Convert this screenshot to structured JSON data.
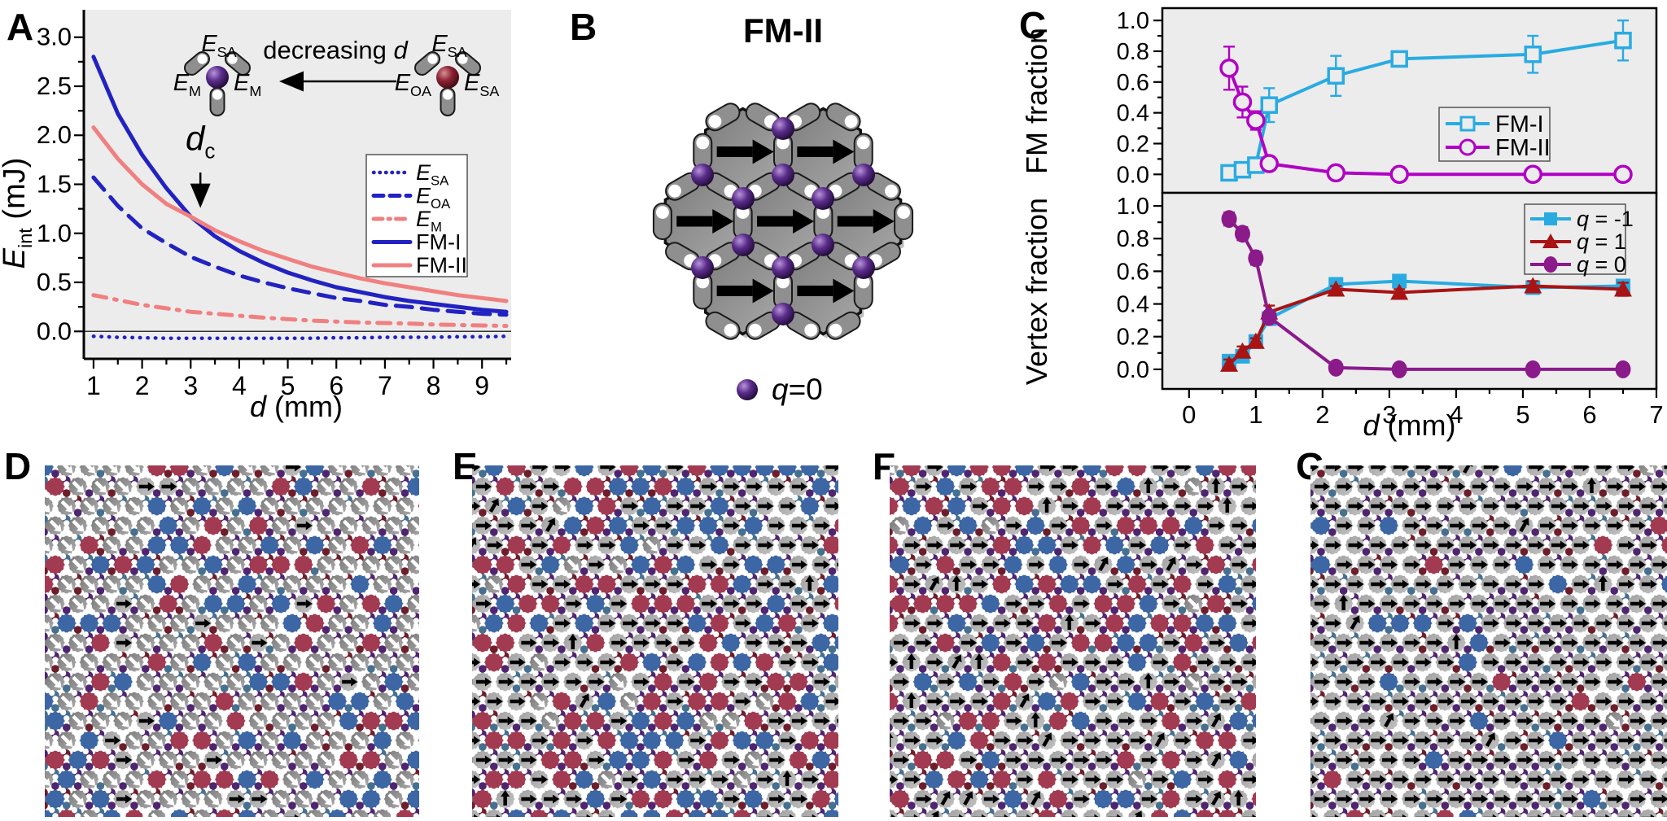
{
  "panels": {
    "A": {
      "label": "A",
      "xlabel_parts": [
        {
          "t": "d",
          "i": 1
        },
        {
          "t": " (mm)"
        }
      ],
      "ylabel_parts": [
        {
          "t": "E",
          "i": 1
        },
        {
          "t": "int",
          "sub": 1
        },
        {
          "t": " (mJ)"
        }
      ],
      "annotation_parts": [
        {
          "t": "d",
          "i": 1
        },
        {
          "t": "c",
          "sub": 1
        }
      ],
      "inset": {
        "arrow_label_parts": [
          {
            "t": "decreasing "
          },
          {
            "t": "d",
            "i": 1
          }
        ],
        "left_diagram": {
          "top": [
            {
              "t": "E",
              "i": 1
            },
            {
              "t": "SA",
              "sub": 1
            }
          ],
          "left": [
            {
              "t": "E",
              "i": 1
            },
            {
              "t": "M",
              "sub": 1
            }
          ],
          "right": [
            {
              "t": "E",
              "i": 1
            },
            {
              "t": "M",
              "sub": 1
            }
          ],
          "sphere": "#5B2D8C"
        },
        "right_diagram": {
          "top": [
            {
              "t": "E",
              "i": 1
            },
            {
              "t": "SA",
              "sub": 1
            }
          ],
          "left": [
            {
              "t": "E",
              "i": 1
            },
            {
              "t": "OA",
              "sub": 1
            }
          ],
          "right": [
            {
              "t": "E",
              "i": 1
            },
            {
              "t": "SA",
              "sub": 1
            }
          ],
          "sphere": "#8E2433"
        }
      }
    },
    "B": {
      "label": "B",
      "title": "FM-II",
      "legend_parts": [
        {
          "t": "q",
          "i": 1
        },
        {
          "t": "=0"
        }
      ],
      "hex_arrow_direction": "right",
      "num_hexagons": 7
    },
    "C": {
      "label": "C"
    },
    "D": {
      "label": "D"
    },
    "E": {
      "label": "E"
    },
    "F": {
      "label": "F"
    },
    "G": {
      "label": "G"
    }
  },
  "chart_data": [
    {
      "id": "panelA",
      "type": "line",
      "xlabel": "d (mm)",
      "ylabel": "E_int (mJ)",
      "xlim": [
        0.8,
        9.6
      ],
      "ylim": [
        -0.28,
        3.28
      ],
      "xticks": [
        1,
        2,
        3,
        4,
        5,
        6,
        7,
        8,
        9
      ],
      "yticks": [
        0.0,
        0.5,
        1.0,
        1.5,
        2.0,
        2.5,
        3.0
      ],
      "ytick_labels": [
        "0.0",
        "0.5",
        "1.0",
        "1.5",
        "2.0",
        "2.5",
        "3.0"
      ],
      "grid": false,
      "background": "#ECECEC",
      "x": [
        1,
        1.5,
        2,
        2.5,
        3,
        3.5,
        4,
        4.5,
        5,
        5.5,
        6,
        6.5,
        7,
        7.5,
        8,
        8.5,
        9,
        9.5
      ],
      "series": [
        {
          "name": "E_SA",
          "label_parts": [
            {
              "t": "E",
              "i": 1
            },
            {
              "t": "SA",
              "sub": 1
            }
          ],
          "style": "dotted",
          "color": "#2222C2",
          "values": [
            -0.05,
            -0.06,
            -0.065,
            -0.07,
            -0.07,
            -0.07,
            -0.07,
            -0.07,
            -0.07,
            -0.07,
            -0.065,
            -0.065,
            -0.06,
            -0.06,
            -0.06,
            -0.055,
            -0.055,
            -0.05
          ]
        },
        {
          "name": "E_OA",
          "label_parts": [
            {
              "t": "E",
              "i": 1
            },
            {
              "t": "OA",
              "sub": 1
            }
          ],
          "style": "dashed",
          "color": "#2222C2",
          "values": [
            1.57,
            1.28,
            1.05,
            0.9,
            0.76,
            0.66,
            0.57,
            0.5,
            0.44,
            0.39,
            0.34,
            0.31,
            0.27,
            0.25,
            0.22,
            0.2,
            0.18,
            0.17
          ]
        },
        {
          "name": "E_M",
          "label_parts": [
            {
              "t": "E",
              "i": 1
            },
            {
              "t": "M",
              "sub": 1
            }
          ],
          "style": "dashdot",
          "color": "#F08080",
          "values": [
            0.37,
            0.32,
            0.27,
            0.235,
            0.2,
            0.18,
            0.16,
            0.14,
            0.125,
            0.11,
            0.1,
            0.09,
            0.085,
            0.08,
            0.07,
            0.065,
            0.06,
            0.055
          ]
        },
        {
          "name": "FM-I",
          "label_parts": [
            {
              "t": "FM-I"
            }
          ],
          "style": "solid",
          "color": "#2222C2",
          "values": [
            2.8,
            2.22,
            1.8,
            1.46,
            1.17,
            0.97,
            0.82,
            0.7,
            0.6,
            0.52,
            0.45,
            0.4,
            0.35,
            0.31,
            0.28,
            0.25,
            0.22,
            0.2
          ]
        },
        {
          "name": "FM-II",
          "label_parts": [
            {
              "t": "FM-II"
            }
          ],
          "style": "solid",
          "color": "#F08080",
          "values": [
            2.08,
            1.76,
            1.5,
            1.3,
            1.17,
            1.03,
            0.92,
            0.82,
            0.74,
            0.66,
            0.6,
            0.54,
            0.49,
            0.45,
            0.41,
            0.37,
            0.34,
            0.31
          ]
        }
      ],
      "annotation": {
        "x": 3.2,
        "y_text": 1.85,
        "arrow_y_from": 1.62,
        "arrow_y_to": 1.3,
        "legend_position": "right-middle"
      }
    },
    {
      "id": "panelC_top",
      "type": "scatter-line",
      "ylabel": "FM fraction",
      "xlim": [
        -0.4,
        7.0
      ],
      "ylim": [
        -0.12,
        1.08
      ],
      "yticks": [
        0.0,
        0.2,
        0.4,
        0.6,
        0.8,
        1.0
      ],
      "ytick_labels": [
        "0.0",
        "0.2",
        "0.4",
        "0.6",
        "0.8",
        "1.0"
      ],
      "background": "#ECECEC",
      "x": [
        0.6,
        0.8,
        1.0,
        1.2,
        2.2,
        3.15,
        5.15,
        6.5
      ],
      "series": [
        {
          "name": "FM-I",
          "label_parts": [
            {
              "t": "FM-I"
            }
          ],
          "marker": "square-open",
          "color": "#29ABE2",
          "values": [
            0.01,
            0.03,
            0.06,
            0.45,
            0.64,
            0.75,
            0.78,
            0.87
          ],
          "errors": [
            0.02,
            0.02,
            0.03,
            0.11,
            0.13,
            0.03,
            0.12,
            0.13
          ]
        },
        {
          "name": "FM-II",
          "label_parts": [
            {
              "t": "FM-II"
            }
          ],
          "marker": "circle-open",
          "color": "#B100C4",
          "values": [
            0.69,
            0.47,
            0.35,
            0.07,
            0.01,
            0.0,
            0.0,
            0.0
          ],
          "errors": [
            0.14,
            0.1,
            0.06,
            0.03,
            0.01,
            0.01,
            0.01,
            0.01
          ]
        }
      ],
      "legend_position": "right-middle"
    },
    {
      "id": "panelC_bottom",
      "type": "scatter-line",
      "ylabel": "Vertex fraction",
      "xlabel": "d (mm)",
      "xlim": [
        -0.4,
        7.0
      ],
      "ylim": [
        -0.12,
        1.08
      ],
      "xticks": [
        0,
        1,
        2,
        3,
        4,
        5,
        6,
        7
      ],
      "yticks": [
        0.0,
        0.2,
        0.4,
        0.6,
        0.8,
        1.0
      ],
      "ytick_labels": [
        "0.0",
        "0.2",
        "0.4",
        "0.6",
        "0.8",
        "1.0"
      ],
      "background": "#ECECEC",
      "x": [
        0.6,
        0.8,
        1.0,
        1.2,
        2.2,
        3.15,
        5.15,
        6.5
      ],
      "series": [
        {
          "name": "q = -1",
          "label_parts": [
            {
              "t": "q",
              "i": 1
            },
            {
              "t": " = -1"
            }
          ],
          "marker": "square",
          "color": "#29ABE2",
          "values": [
            0.05,
            0.08,
            0.17,
            0.31,
            0.52,
            0.54,
            0.5,
            0.51
          ],
          "errors": [
            0.02,
            0.02,
            0.02,
            0.03,
            0.02,
            0.02,
            0.03,
            0.03
          ]
        },
        {
          "name": "q = 1",
          "label_parts": [
            {
              "t": "q",
              "i": 1
            },
            {
              "t": " = 1"
            }
          ],
          "marker": "triangle",
          "color": "#A81414",
          "values": [
            0.03,
            0.11,
            0.17,
            0.35,
            0.49,
            0.47,
            0.51,
            0.49
          ],
          "errors": [
            0.03,
            0.03,
            0.02,
            0.04,
            0.02,
            0.02,
            0.03,
            0.04
          ]
        },
        {
          "name": "q = 0",
          "label_parts": [
            {
              "t": "q",
              "i": 1
            },
            {
              "t": " = 0"
            }
          ],
          "marker": "circle",
          "color": "#8B1A8B",
          "values": [
            0.92,
            0.83,
            0.68,
            0.32,
            0.01,
            0.0,
            0.0,
            0.0
          ],
          "errors": [
            0.04,
            0.04,
            0.04,
            0.03,
            0.01,
            0.01,
            0.01,
            0.01
          ]
        }
      ],
      "legend_position": "right-top"
    }
  ],
  "lattices": {
    "D": {
      "seed": 7,
      "fractions": {
        "blue": 0.21,
        "red": 0.21,
        "grayWhiteArrow": 0.53,
        "grayBlackArrow": 0.05
      },
      "black_arrow_jitter": 0.0
    },
    "E": {
      "seed": 13,
      "fractions": {
        "blue": 0.2,
        "red": 0.21,
        "grayWhiteArrow": 0.05,
        "grayBlackArrow": 0.54
      },
      "black_arrow_jitter": 0.05
    },
    "F": {
      "seed": 21,
      "fractions": {
        "blue": 0.2,
        "red": 0.22,
        "grayWhiteArrow": 0.04,
        "grayBlackArrow": 0.54
      },
      "black_arrow_jitter": 0.22
    },
    "G": {
      "seed": 42,
      "fractions": {
        "blue": 0.06,
        "red": 0.05,
        "grayWhiteArrow": 0.01,
        "grayBlackArrow": 0.88
      },
      "black_arrow_jitter": 0.03
    }
  },
  "colors": {
    "plot_background": "#ECECEC",
    "panelA_blue": "#2222C2",
    "panelA_salmon": "#F08080",
    "fm1_cyan": "#29ABE2",
    "fm2_magenta": "#B100C4",
    "q_minus1_cyan": "#29ABE2",
    "q_plus1_darkred": "#A81414",
    "q_zero_purple": "#8B1A8B",
    "lattice_blue": "#3D66A4",
    "lattice_red": "#A23B51",
    "lattice_gray": "#9A9A9A",
    "vertex_purple": "#4F2470",
    "vertex_darkred": "#6E1D2A",
    "vertex_steelblue": "#46708F",
    "sphere_purple": "#5B2D8C",
    "sphere_darkred": "#8E2433"
  }
}
